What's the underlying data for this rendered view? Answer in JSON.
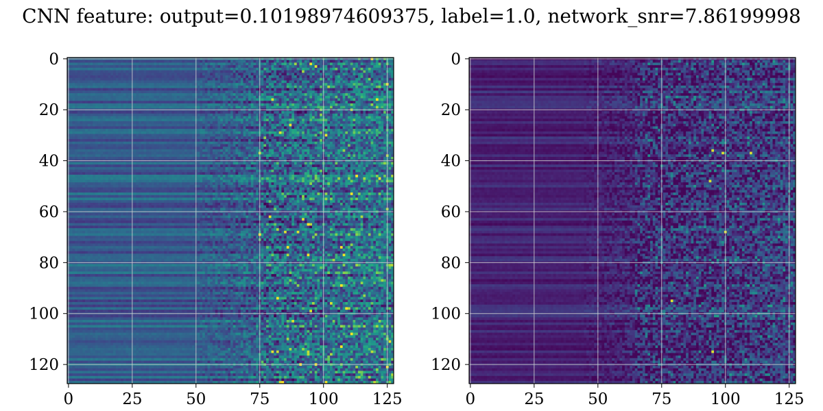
{
  "chart_data": {
    "type": "heatmap",
    "title": "CNN feature: output=0.10198974609375, label=1.0, network_snr=7.86199998",
    "colormap": "viridis",
    "grid": true,
    "panels": [
      {
        "name": "",
        "rows": 128,
        "cols": 128,
        "xlim": [
          0,
          127
        ],
        "ylim": [
          127,
          0
        ],
        "xticks": [
          0,
          25,
          50,
          75,
          100,
          125
        ],
        "yticks": [
          0,
          20,
          40,
          60,
          80,
          100,
          120
        ],
        "structure": "left columns (0-50) show horizontal row-stripes of blue/teal; right columns (75-127) are speckled noise with bright yellow-green spots near rows 3, 16, 58-68, 103",
        "bright_spots": [
          [
            97,
            3
          ],
          [
            80,
            16
          ],
          [
            92,
            63
          ],
          [
            85,
            68
          ],
          [
            90,
            68
          ],
          [
            95,
            99
          ],
          [
            88,
            103
          ]
        ]
      },
      {
        "name": "",
        "rows": 128,
        "cols": 128,
        "xlim": [
          0,
          127
        ],
        "ylim": [
          127,
          0
        ],
        "xticks": [
          0,
          25,
          50,
          75,
          100,
          125
        ],
        "yticks": [
          0,
          20,
          40,
          60,
          80,
          100,
          120
        ],
        "structure": "mostly dark purple; left columns faint horizontal stripes; right columns (65-127) speckled noise with teal/yellow spots",
        "bright_spots": [
          [
            95,
            36
          ],
          [
            99,
            37
          ],
          [
            110,
            37
          ],
          [
            94,
            48
          ],
          [
            100,
            68
          ],
          [
            79,
            95
          ],
          [
            95,
            115
          ]
        ]
      }
    ]
  }
}
